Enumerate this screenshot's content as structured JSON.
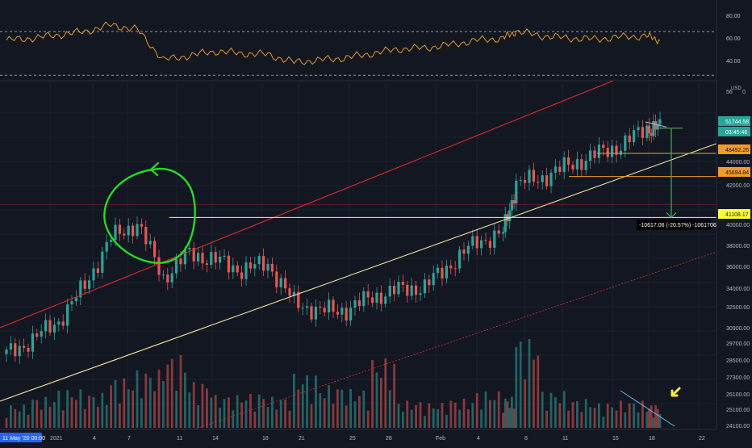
{
  "theme": {
    "background": "#131722",
    "grid": "#1e2230",
    "candle_up": "#26a69a",
    "candle_down": "#ef5350",
    "rsi_line": "#f5a623",
    "channel_red": "#e02828",
    "trend_yellow": "#f2e39e",
    "level_yellow": "#ffff33",
    "level_orange": "#f59b23",
    "measure_green": "#4caf50",
    "annotation_green": "#22dd22",
    "arrow_yellow": "#ffeb3b",
    "volume_trend": "#4fc3f7",
    "axis_text": "#b2b5be"
  },
  "rsi_axis": {
    "ticks": [
      "80.00",
      "60.00",
      "40.00"
    ],
    "ylim": [
      28,
      90
    ],
    "upper_band": 70,
    "lower_band": 30
  },
  "price_axis": {
    "currency": "USD",
    "top_labels": [
      "56",
      "0"
    ],
    "ticks": [
      "44000.00",
      "42000.00",
      "40000.00",
      "38000.00",
      "36000.00",
      "34000.00",
      "32500.00",
      "30900.00",
      "29700.00",
      "28500.00",
      "27300.00",
      "26100.00",
      "25100.00",
      "24100.00"
    ],
    "scale": "log",
    "ylim": [
      23800,
      58000
    ]
  },
  "time_axis": {
    "corner_label": "11 May '20  00:00",
    "ticks": [
      "2021",
      "4",
      "7",
      "11",
      "14",
      "18",
      "21",
      "25",
      "28",
      "Feb",
      "4",
      "8",
      "11",
      "15",
      "18",
      "22"
    ]
  },
  "price_tags": {
    "current_price": "51744.58",
    "countdown": "03:45:46",
    "level_1": "48492.26",
    "level_2": "45694.84",
    "level_3": "41108.17"
  },
  "measure": {
    "label": "-10617.06 (-20.57%) -1061706"
  },
  "chart_data": {
    "type": "candlestick",
    "x": [
      "2020-12-31",
      "2021-01-02",
      "2021-01-04",
      "2021-01-06",
      "2021-01-08",
      "2021-01-10",
      "2021-01-12",
      "2021-01-14",
      "2021-01-16",
      "2021-01-18",
      "2021-01-20",
      "2021-01-22",
      "2021-01-24",
      "2021-01-26",
      "2021-01-28",
      "2021-01-30",
      "2021-02-01",
      "2021-02-03",
      "2021-02-05",
      "2021-02-07",
      "2021-02-08",
      "2021-02-10",
      "2021-02-12",
      "2021-02-14",
      "2021-02-16",
      "2021-02-18",
      "2021-02-19"
    ],
    "close": [
      28900,
      30000,
      31500,
      34500,
      39000,
      40500,
      35200,
      37500,
      36800,
      35900,
      36500,
      33000,
      32300,
      32400,
      33500,
      34100,
      34400,
      36500,
      38600,
      39500,
      44800,
      45600,
      47000,
      48300,
      49500,
      51800,
      51744.58
    ],
    "series": [
      {
        "name": "RSI",
        "values": [
          62,
          64,
          67,
          70,
          76,
          72,
          44,
          48,
          52,
          50,
          49,
          42,
          44,
          46,
          50,
          54,
          55,
          58,
          62,
          64,
          70,
          66,
          64,
          63,
          65,
          66,
          62
        ]
      },
      {
        "name": "Volume",
        "values": [
          1.2,
          1.6,
          2.0,
          1.8,
          2.6,
          3.0,
          3.8,
          2.4,
          1.7,
          1.8,
          1.6,
          2.8,
          2.2,
          2.0,
          3.6,
          1.4,
          1.3,
          1.5,
          1.9,
          1.6,
          4.8,
          1.9,
          1.5,
          1.3,
          1.4,
          1.2,
          1.0
        ]
      }
    ],
    "levels": [
      48492.26,
      45694.84,
      41108.17
    ],
    "grid": true
  }
}
